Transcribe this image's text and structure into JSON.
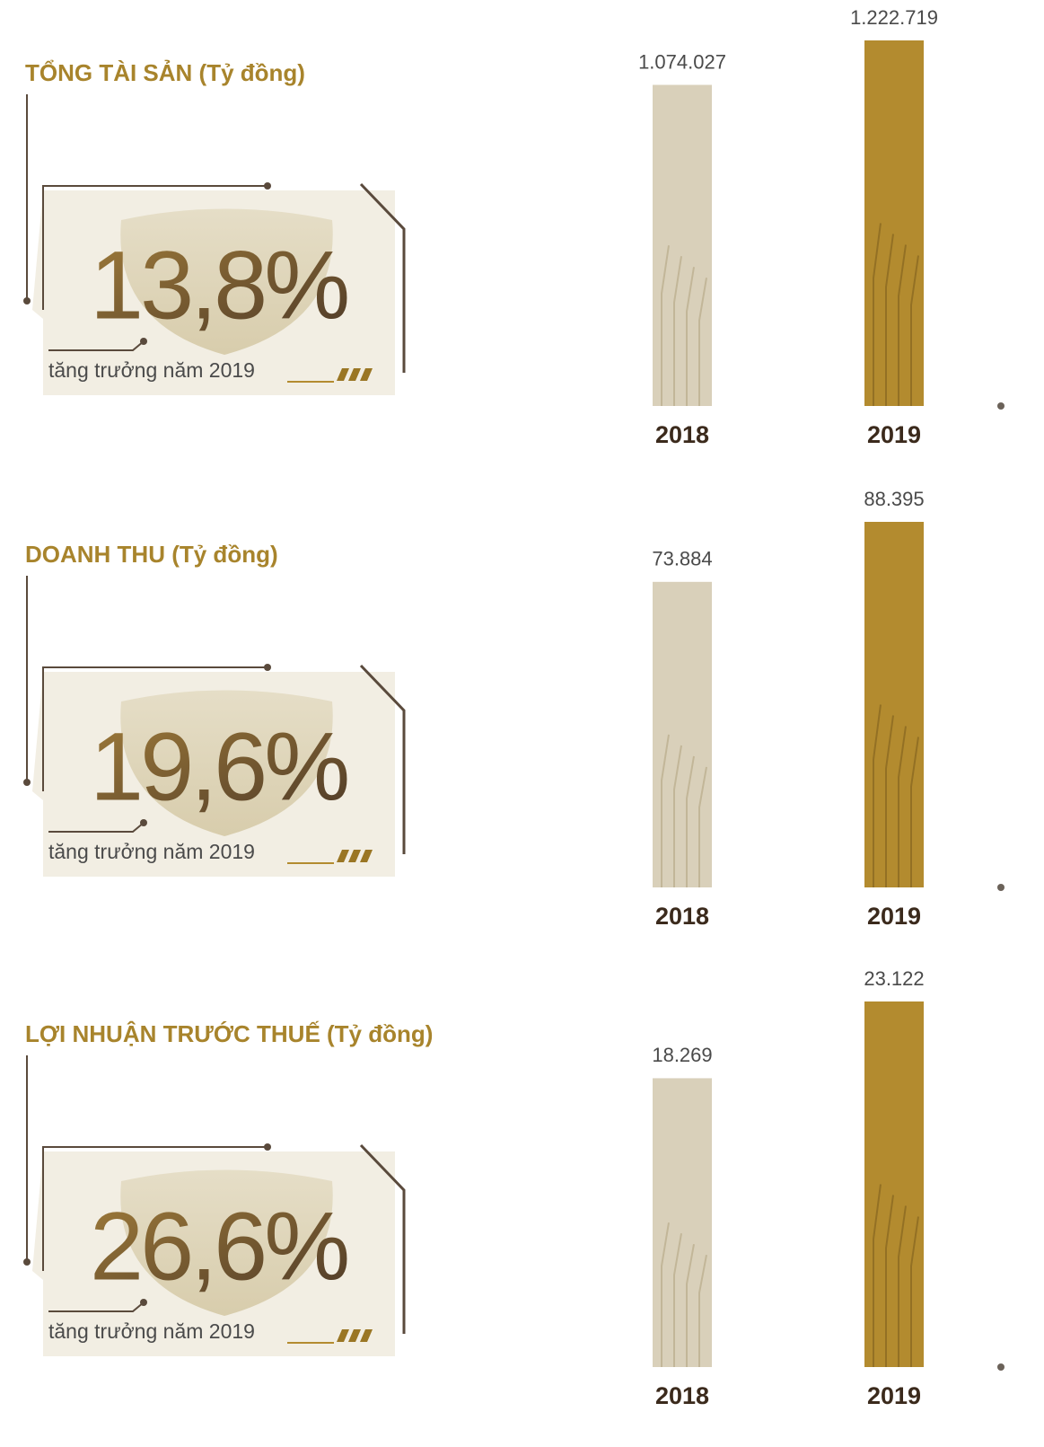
{
  "chart_data": [
    {
      "type": "bar",
      "title": "TỔNG TÀI SẢN (Tỷ đồng)",
      "categories": [
        "2018",
        "2019"
      ],
      "values": [
        1074027,
        1222719
      ],
      "value_labels": [
        "1.074.027",
        "1.222.719"
      ],
      "colors": [
        "#d9d0ba",
        "#b38b2f"
      ],
      "growth": "13,8%",
      "growth_caption": "tăng trưởng năm 2019"
    },
    {
      "type": "bar",
      "title": "DOANH THU (Tỷ đồng)",
      "categories": [
        "2018",
        "2019"
      ],
      "values": [
        73884,
        88395
      ],
      "value_labels": [
        "73.884",
        "88.395"
      ],
      "colors": [
        "#d9d0ba",
        "#b38b2f"
      ],
      "growth": "19,6%",
      "growth_caption": "tăng trưởng năm 2019"
    },
    {
      "type": "bar",
      "title": "LỢI NHUẬN TRƯỚC THUẾ (Tỷ đồng)",
      "categories": [
        "2018",
        "2019"
      ],
      "values": [
        18269,
        23122
      ],
      "value_labels": [
        "18.269",
        "23.122"
      ],
      "colors": [
        "#d9d0ba",
        "#b38b2f"
      ],
      "growth": "26,6%",
      "growth_caption": "tăng trưởng năm 2019"
    }
  ]
}
